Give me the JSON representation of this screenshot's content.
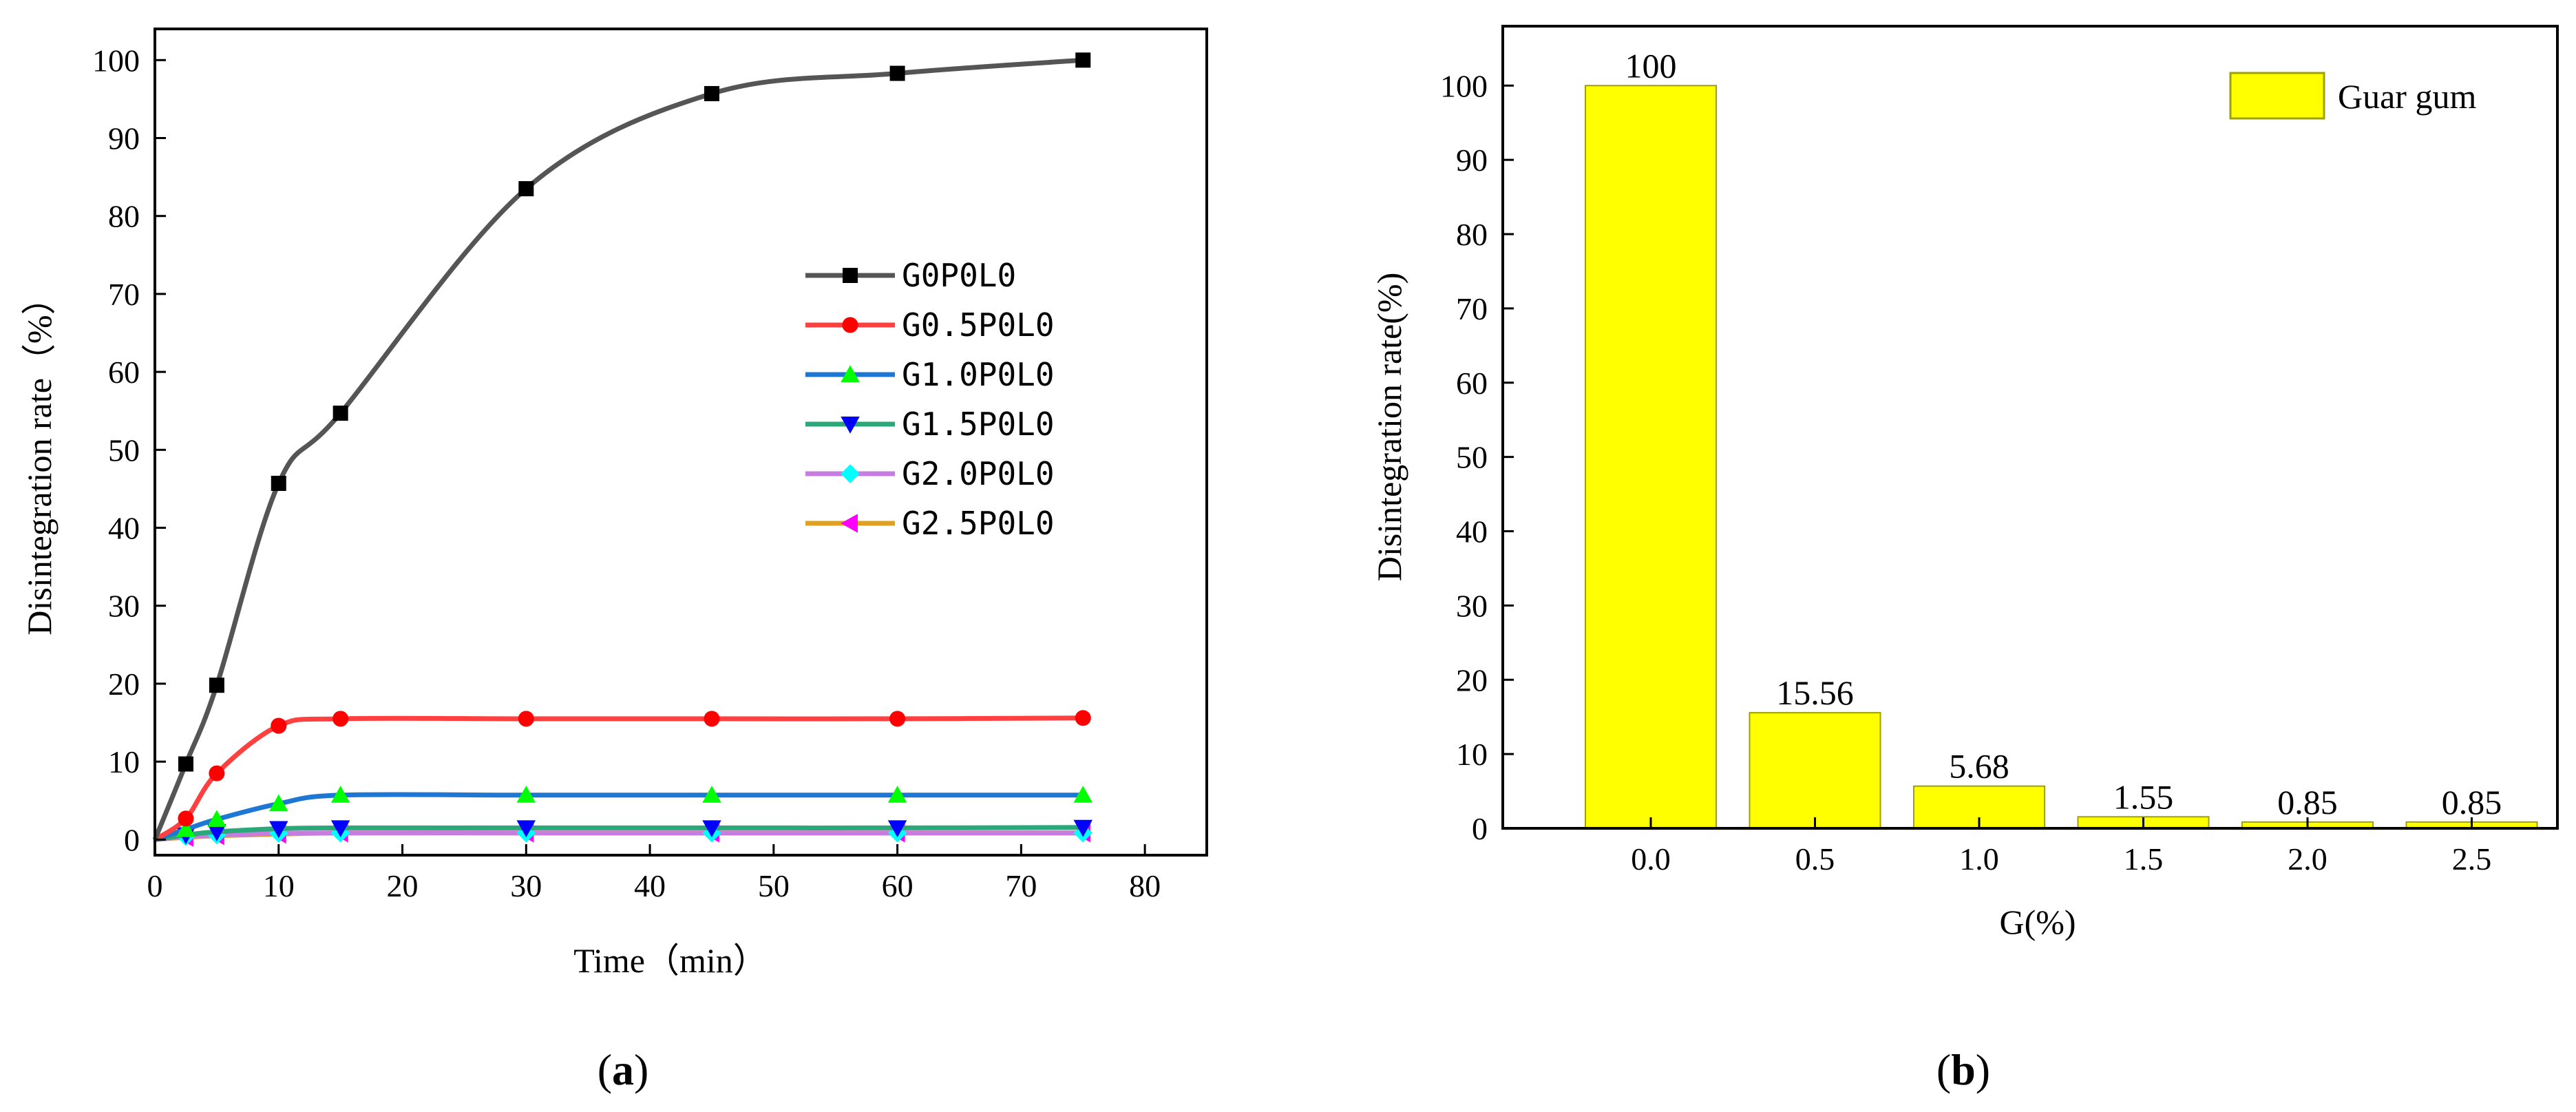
{
  "chart_data": [
    {
      "type": "line",
      "panel_label": "a",
      "title": "",
      "xlabel": "Time（min）",
      "ylabel": "Disintegration rate（%）",
      "xlim": [
        0,
        85
      ],
      "ylim": [
        -2,
        104
      ],
      "xticks": [
        0,
        10,
        20,
        30,
        40,
        50,
        60,
        70,
        80
      ],
      "yticks": [
        0,
        10,
        20,
        30,
        40,
        50,
        60,
        70,
        80,
        90,
        100
      ],
      "x": [
        0,
        2.5,
        5,
        10,
        15,
        30,
        45,
        60,
        75
      ],
      "legend_position": "center-right",
      "series": [
        {
          "name": "G0P0L0",
          "color": "#555555",
          "marker": "square",
          "marker_color": "#000000",
          "values": [
            0,
            9.7,
            19.8,
            45.7,
            54.7,
            83.5,
            95.7,
            98.3,
            100
          ]
        },
        {
          "name": "G0.5P0L0",
          "color": "#ff4040",
          "marker": "circle",
          "marker_color": "#ff0000",
          "values": [
            0,
            2.7,
            8.5,
            14.6,
            15.5,
            15.5,
            15.5,
            15.5,
            15.6
          ]
        },
        {
          "name": "G1.0P0L0",
          "color": "#1f77d4",
          "marker": "triangle-up",
          "marker_color": "#00ff00",
          "values": [
            0,
            1.3,
            2.6,
            4.6,
            5.7,
            5.7,
            5.7,
            5.7,
            5.7
          ]
        },
        {
          "name": "G1.5P0L0",
          "color": "#2aa87a",
          "marker": "triangle-down",
          "marker_color": "#0000ff",
          "values": [
            0,
            0.6,
            1.0,
            1.4,
            1.5,
            1.5,
            1.5,
            1.5,
            1.55
          ]
        },
        {
          "name": "G2.0P0L0",
          "color": "#c77de0",
          "marker": "diamond",
          "marker_color": "#00ffff",
          "values": [
            0,
            0.4,
            0.6,
            0.8,
            0.85,
            0.85,
            0.85,
            0.85,
            0.85
          ]
        },
        {
          "name": "G2.5P0L0",
          "color": "#e0a020",
          "marker": "triangle-left",
          "marker_color": "#ff00ff",
          "values": [
            0,
            0.3,
            0.5,
            0.7,
            0.85,
            0.85,
            0.85,
            0.85,
            0.85
          ]
        }
      ]
    },
    {
      "type": "bar",
      "panel_label": "b",
      "title": "",
      "xlabel": "G(%)",
      "ylabel": "Disintegration rate(%)",
      "ylim": [
        0,
        108
      ],
      "yticks": [
        0,
        10,
        20,
        30,
        40,
        50,
        60,
        70,
        80,
        90,
        100
      ],
      "categories": [
        "0.0",
        "0.5",
        "1.0",
        "1.5",
        "2.0",
        "2.5"
      ],
      "values": [
        100,
        15.56,
        5.68,
        1.55,
        0.85,
        0.85
      ],
      "data_labels": [
        "100",
        "15.56",
        "5.68",
        "1.55",
        "0.85",
        "0.85"
      ],
      "legend_position": "top-right",
      "series_name": "Guar gum",
      "bar_color": "#ffff00",
      "bar_edge_color": "#a0a000"
    }
  ]
}
